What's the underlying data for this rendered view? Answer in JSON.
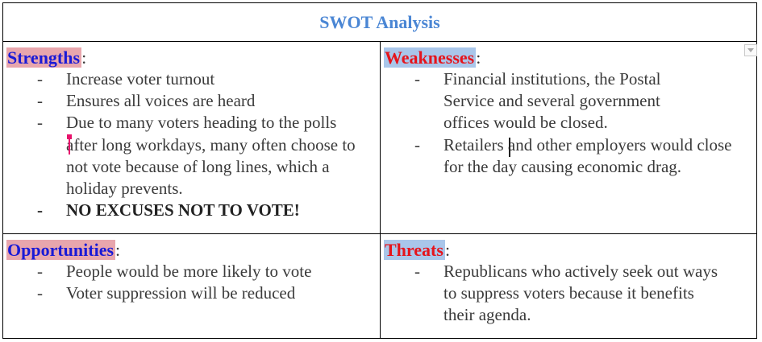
{
  "title": "SWOT Analysis",
  "quadrants": {
    "strengths": {
      "heading": "Strengths",
      "colon": ":",
      "items": [
        "Increase voter turnout",
        "Ensures all voices are heard",
        "Due to many voters heading to the polls after long workdays, many often choose to not vote because of long lines, which a holiday prevents.",
        "NO EXCUSES NOT TO VOTE!"
      ]
    },
    "weaknesses": {
      "heading": "Weaknesses",
      "colon": ":",
      "items": [
        "Financial institutions, the Postal Service and several government offices would be closed.",
        "Retailers and other employers would close for the day causing economic drag."
      ]
    },
    "opportunities": {
      "heading": "Opportunities",
      "colon": ":",
      "items": [
        "People would be more likely to vote",
        "Voter suppression will be reduced"
      ]
    },
    "threats": {
      "heading": "Threats",
      "colon": ":",
      "items": [
        "Republicans who actively seek out ways to suppress voters because it benefits their agenda."
      ]
    }
  },
  "bullet": "-",
  "colors": {
    "title": "#4a86d4",
    "heading_blue_text": "#1a1ad6",
    "heading_red_text": "#e5141c",
    "highlight_pink": "#e8a6ad",
    "highlight_blue": "#a9c6ea"
  },
  "icons": {
    "dropdown": "chevron-down-icon"
  }
}
